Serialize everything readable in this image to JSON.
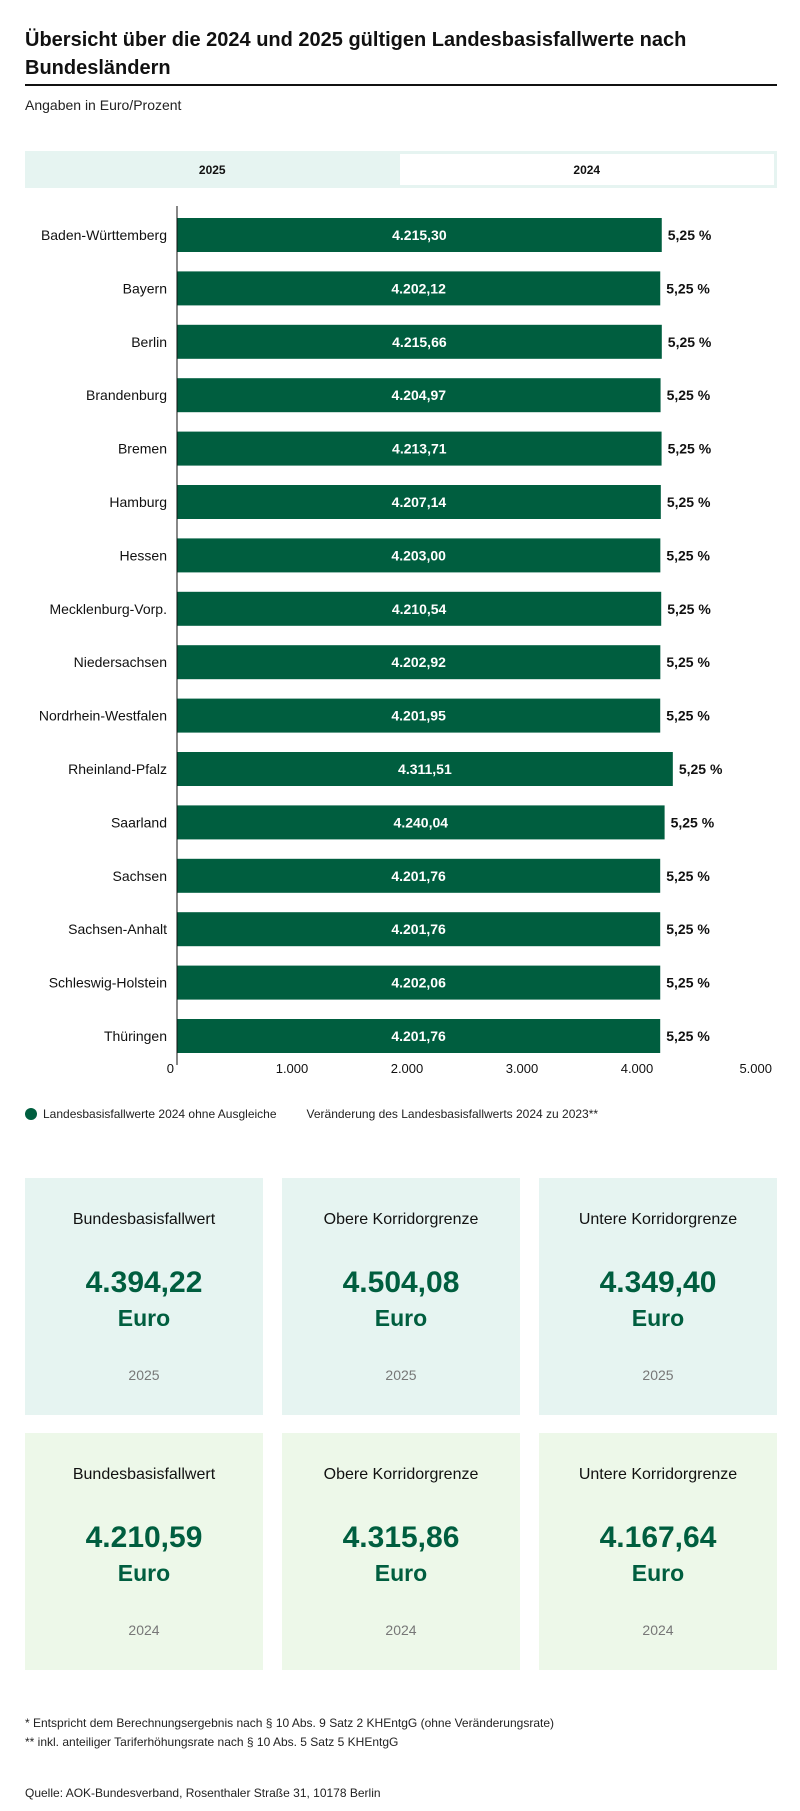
{
  "title": "Übersicht über die 2024 und 2025 gültigen Landesbasisfallwerte nach Bundesländern",
  "subtitle": "Angaben in Euro/Prozent",
  "tabs": [
    {
      "label": "2025",
      "active": false
    },
    {
      "label": "2024",
      "active": true
    }
  ],
  "colors": {
    "bar": "#005e3f",
    "card_bg_2025": "#e6f4f1",
    "card_bg_2024": "#edf8e9",
    "accent": "#005e3f"
  },
  "chart_data": {
    "type": "bar",
    "orientation": "horizontal",
    "categories": [
      "Baden-Württemberg",
      "Bayern",
      "Berlin",
      "Brandenburg",
      "Bremen",
      "Hamburg",
      "Hessen",
      "Mecklenburg-Vorp.",
      "Niedersachsen",
      "Nordrhein-Westfalen",
      "Rheinland-Pfalz",
      "Saarland",
      "Sachsen",
      "Sachsen-Anhalt",
      "Schleswig-Holstein",
      "Thüringen"
    ],
    "series": [
      {
        "name": "Landesbasisfallwerte 2024 ohne Ausgleiche",
        "values": [
          4215.3,
          4202.12,
          4215.66,
          4204.97,
          4213.71,
          4207.14,
          4203.0,
          4210.54,
          4202.92,
          4201.95,
          4311.51,
          4240.04,
          4201.76,
          4201.76,
          4202.06,
          4201.76
        ],
        "labels": [
          "4.215,30",
          "4.202,12",
          "4.215,66",
          "4.204,97",
          "4.213,71",
          "4.207,14",
          "4.203,00",
          "4.210,54",
          "4.202,92",
          "4.201,95",
          "4.311,51",
          "4.240,04",
          "4.201,76",
          "4.201,76",
          "4.202,06",
          "4.201,76"
        ]
      },
      {
        "name": "Veränderung des Landesbasisfallwerts 2024 zu 2023**",
        "values": [
          5.25,
          5.25,
          5.25,
          5.25,
          5.25,
          5.25,
          5.25,
          5.25,
          5.25,
          5.25,
          5.25,
          5.25,
          5.25,
          5.25,
          5.25,
          5.25
        ],
        "labels": [
          "5,25 %",
          "5,25 %",
          "5,25 %",
          "5,25 %",
          "5,25 %",
          "5,25 %",
          "5,25 %",
          "5,25 %",
          "5,25 %",
          "5,25 %",
          "5,25 %",
          "5,25 %",
          "5,25 %",
          "5,25 %",
          "5,25 %",
          "5,25 %"
        ]
      }
    ],
    "xlim": [
      0,
      5000
    ],
    "x_ticks": [
      0,
      1000,
      2000,
      3000,
      4000,
      5000
    ],
    "x_tick_labels": [
      "0",
      "1.000",
      "2.000",
      "3.000",
      "4.000",
      "5.000"
    ],
    "grid": false,
    "legend_position": "bottom-left"
  },
  "legend": {
    "item1": "Landesbasisfallwerte 2024 ohne Ausgleiche",
    "item2": "Veränderung des Landesbasisfallwerts 2024 zu 2023**"
  },
  "cards_2025": [
    {
      "label": "Bundesbasisfallwert",
      "value": "4.394,22",
      "unit": "Euro",
      "year": "2025"
    },
    {
      "label": "Obere Korridorgrenze",
      "value": "4.504,08",
      "unit": "Euro",
      "year": "2025"
    },
    {
      "label": "Untere Korridorgrenze",
      "value": "4.349,40",
      "unit": "Euro",
      "year": "2025"
    }
  ],
  "cards_2024": [
    {
      "label": "Bundesbasisfallwert",
      "value": "4.210,59",
      "unit": "Euro",
      "year": "2024"
    },
    {
      "label": "Obere Korridorgrenze",
      "value": "4.315,86",
      "unit": "Euro",
      "year": "2024"
    },
    {
      "label": "Untere Korridorgrenze",
      "value": "4.167,64",
      "unit": "Euro",
      "year": "2024"
    }
  ],
  "footnotes": [
    "* Entspricht dem Berechnungsergebnis nach § 10 Abs. 9 Satz 2 KHEntgG (ohne Veränderungsrate)",
    "** inkl. anteiliger Tariferhöhungsrate nach § 10 Abs. 5 Satz 5 KHEntgG"
  ],
  "source": "Quelle: AOK-Bundesverband, Rosenthaler Straße 31, 10178 Berlin"
}
